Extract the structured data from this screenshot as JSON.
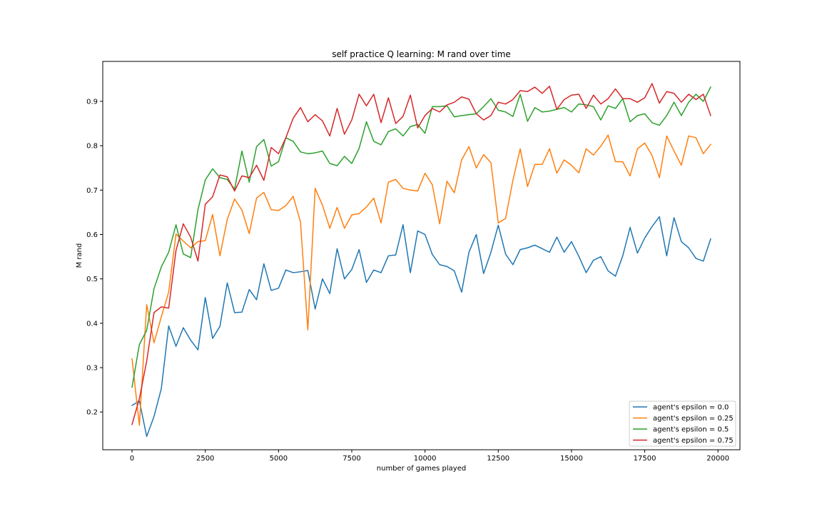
{
  "chart_data": {
    "type": "line",
    "title": "self practice Q learning: M rand over time",
    "xlabel": "number of games played",
    "ylabel": "M rand",
    "xlim": [
      -1000,
      20750
    ],
    "ylim": [
      0.115,
      0.99
    ],
    "xticks": [
      0,
      2500,
      5000,
      7500,
      10000,
      12500,
      15000,
      17500,
      20000
    ],
    "yticks": [
      0.2,
      0.3,
      0.4,
      0.5,
      0.6,
      0.7,
      0.8,
      0.9
    ],
    "ytick_labels": [
      "0.2",
      "0.3",
      "0.4",
      "0.5",
      "0.6",
      "0.7",
      "0.8",
      "0.9"
    ],
    "grid": false,
    "legend_position": "lower-right",
    "x_start": 0,
    "x_step": 250,
    "series": [
      {
        "name": "agent's epsilon = 0.0",
        "color": "#1f77b4",
        "values": [
          0.215,
          0.225,
          0.145,
          0.19,
          0.253,
          0.394,
          0.348,
          0.39,
          0.362,
          0.34,
          0.458,
          0.366,
          0.393,
          0.491,
          0.424,
          0.425,
          0.476,
          0.453,
          0.534,
          0.474,
          0.479,
          0.52,
          0.514,
          0.516,
          0.519,
          0.432,
          0.5,
          0.467,
          0.568,
          0.5,
          0.521,
          0.566,
          0.492,
          0.52,
          0.514,
          0.552,
          0.554,
          0.622,
          0.514,
          0.608,
          0.6,
          0.555,
          0.532,
          0.528,
          0.518,
          0.47,
          0.56,
          0.6,
          0.512,
          0.56,
          0.621,
          0.556,
          0.532,
          0.566,
          0.57,
          0.576,
          0.568,
          0.56,
          0.594,
          0.56,
          0.584,
          0.551,
          0.514,
          0.542,
          0.55,
          0.518,
          0.506,
          0.552,
          0.616,
          0.558,
          0.592,
          0.618,
          0.64,
          0.552,
          0.638,
          0.584,
          0.57,
          0.546,
          0.54,
          0.59
        ]
      },
      {
        "name": "agent's epsilon = 0.25",
        "color": "#ff7f0e",
        "values": [
          0.32,
          0.17,
          0.442,
          0.356,
          0.415,
          0.47,
          0.601,
          0.585,
          0.57,
          0.584,
          0.586,
          0.645,
          0.552,
          0.634,
          0.68,
          0.655,
          0.602,
          0.682,
          0.695,
          0.656,
          0.654,
          0.665,
          0.686,
          0.628,
          0.385,
          0.704,
          0.666,
          0.614,
          0.661,
          0.614,
          0.644,
          0.647,
          0.662,
          0.682,
          0.626,
          0.718,
          0.724,
          0.704,
          0.7,
          0.698,
          0.738,
          0.712,
          0.624,
          0.72,
          0.694,
          0.768,
          0.798,
          0.75,
          0.78,
          0.762,
          0.626,
          0.636,
          0.722,
          0.793,
          0.708,
          0.758,
          0.758,
          0.793,
          0.738,
          0.768,
          0.756,
          0.739,
          0.793,
          0.779,
          0.799,
          0.824,
          0.764,
          0.764,
          0.732,
          0.793,
          0.806,
          0.778,
          0.728,
          0.822,
          0.788,
          0.756,
          0.822,
          0.818,
          0.782,
          0.803
        ]
      },
      {
        "name": "agent's epsilon = 0.5",
        "color": "#2ca02c",
        "values": [
          0.256,
          0.352,
          0.384,
          0.478,
          0.527,
          0.56,
          0.622,
          0.556,
          0.548,
          0.656,
          0.723,
          0.748,
          0.728,
          0.724,
          0.702,
          0.788,
          0.718,
          0.798,
          0.814,
          0.754,
          0.764,
          0.818,
          0.81,
          0.786,
          0.782,
          0.784,
          0.788,
          0.76,
          0.755,
          0.776,
          0.76,
          0.794,
          0.854,
          0.81,
          0.802,
          0.832,
          0.838,
          0.822,
          0.843,
          0.848,
          0.828,
          0.888,
          0.888,
          0.89,
          0.865,
          0.868,
          0.87,
          0.872,
          0.888,
          0.906,
          0.88,
          0.876,
          0.866,
          0.916,
          0.855,
          0.886,
          0.876,
          0.878,
          0.882,
          0.886,
          0.876,
          0.894,
          0.892,
          0.888,
          0.858,
          0.89,
          0.884,
          0.906,
          0.854,
          0.868,
          0.872,
          0.852,
          0.846,
          0.868,
          0.898,
          0.868,
          0.898,
          0.916,
          0.9,
          0.932
        ]
      },
      {
        "name": "agent's epsilon = 0.75",
        "color": "#d62728",
        "values": [
          0.172,
          0.23,
          0.315,
          0.424,
          0.437,
          0.434,
          0.564,
          0.624,
          0.594,
          0.54,
          0.668,
          0.685,
          0.734,
          0.73,
          0.698,
          0.732,
          0.728,
          0.756,
          0.722,
          0.796,
          0.782,
          0.818,
          0.862,
          0.886,
          0.854,
          0.87,
          0.856,
          0.822,
          0.884,
          0.826,
          0.858,
          0.916,
          0.89,
          0.916,
          0.852,
          0.908,
          0.85,
          0.866,
          0.914,
          0.84,
          0.868,
          0.884,
          0.876,
          0.892,
          0.898,
          0.91,
          0.905,
          0.872,
          0.858,
          0.868,
          0.898,
          0.894,
          0.904,
          0.924,
          0.922,
          0.932,
          0.918,
          0.934,
          0.882,
          0.904,
          0.914,
          0.916,
          0.884,
          0.914,
          0.894,
          0.906,
          0.928,
          0.906,
          0.906,
          0.898,
          0.908,
          0.94,
          0.896,
          0.922,
          0.918,
          0.898,
          0.916,
          0.904,
          0.916,
          0.868
        ]
      }
    ]
  }
}
